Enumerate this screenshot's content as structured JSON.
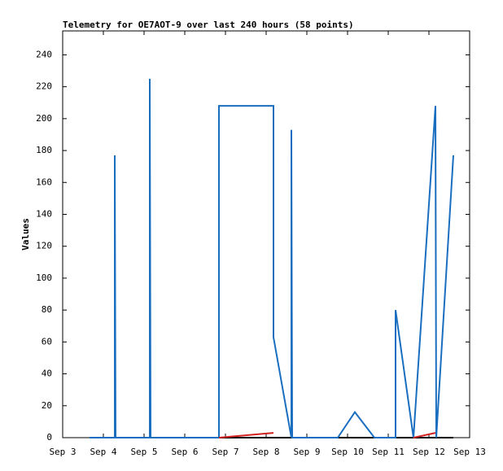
{
  "chart_data": {
    "type": "line",
    "title": "Telemetry for OE7AOT-9 over last 240 hours (58 points)",
    "y_label": "Values",
    "xlim": [
      3,
      13
    ],
    "xticks": [
      {
        "value": 3,
        "label": "Sep 3"
      },
      {
        "value": 4,
        "label": "Sep 4"
      },
      {
        "value": 5,
        "label": "Sep 5"
      },
      {
        "value": 6,
        "label": "Sep 6"
      },
      {
        "value": 7,
        "label": "Sep 7"
      },
      {
        "value": 8,
        "label": "Sep 8"
      },
      {
        "value": 9,
        "label": "Sep 9"
      },
      {
        "value": 10,
        "label": "Sep 10"
      },
      {
        "value": 11,
        "label": "Sep 11"
      },
      {
        "value": 12,
        "label": "Sep 12"
      },
      {
        "value": 13,
        "label": "Sep 13"
      }
    ],
    "ylim": [
      0,
      255
    ],
    "yticks": [
      0,
      20,
      40,
      60,
      80,
      100,
      120,
      140,
      160,
      180,
      200,
      220,
      240
    ],
    "series": [
      {
        "color": "#000000",
        "x": [
          3.66,
          12.6
        ],
        "values": [
          0,
          0
        ]
      },
      {
        "color": "#1a6ec0",
        "x": [
          3.66,
          4.28,
          4.28,
          4.3,
          5.14,
          5.14,
          5.16,
          6.84,
          6.84,
          8.18,
          8.18,
          8.62,
          8.62,
          8.64,
          9.76,
          10.18,
          10.66,
          11.18,
          11.18,
          11.62,
          12.16,
          12.18,
          12.6
        ],
        "values": [
          0,
          0,
          177,
          0,
          0,
          225,
          0,
          0,
          208,
          208,
          63,
          0,
          193,
          0,
          0,
          16,
          0,
          0,
          80,
          0,
          208,
          0,
          177
        ]
      },
      {
        "color": "#d02020",
        "x": [
          6.84,
          8.18,
          8.2,
          11.62,
          12.16
        ],
        "values": [
          0,
          3,
          null,
          0,
          3
        ]
      }
    ]
  }
}
